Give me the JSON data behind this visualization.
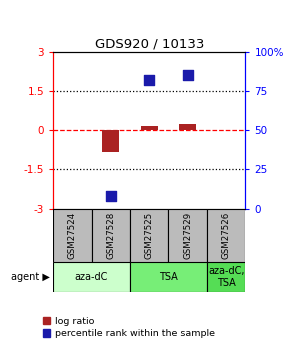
{
  "title": "GDS920 / 10133",
  "samples": [
    "GSM27524",
    "GSM27528",
    "GSM27525",
    "GSM27529",
    "GSM27526"
  ],
  "log_ratio": [
    0.0,
    -0.85,
    0.18,
    0.22,
    0.0
  ],
  "percentile": [
    null,
    8,
    82,
    85,
    null
  ],
  "ylim": [
    -3,
    3
  ],
  "yticks_left": [
    -3,
    -1.5,
    0,
    1.5,
    3
  ],
  "yticks_right_pct": [
    0,
    25,
    50,
    75,
    100
  ],
  "yticks_right_labels": [
    "0",
    "25",
    "50",
    "75",
    "100%"
  ],
  "hlines_dotted": [
    -1.5,
    1.5
  ],
  "hline_dashed": 0,
  "bar_color": "#aa2222",
  "dot_color": "#1a1aaa",
  "bar_width": 0.45,
  "dot_size": 55,
  "sample_box_color": "#bbbbbb",
  "agent_colors": [
    "#ccffcc",
    "#88ee88",
    "#66dd66"
  ],
  "agent_groups": [
    {
      "label": "aza-dC",
      "start": 0,
      "end": 1,
      "color": "#ccffcc"
    },
    {
      "label": "TSA",
      "start": 2,
      "end": 3,
      "color": "#77ee77"
    },
    {
      "label": "aza-dC,\nTSA",
      "start": 4,
      "end": 4,
      "color": "#55dd55"
    }
  ],
  "legend_bar_label": "log ratio",
  "legend_dot_label": "percentile rank within the sample",
  "agent_arrow_label": "agent"
}
